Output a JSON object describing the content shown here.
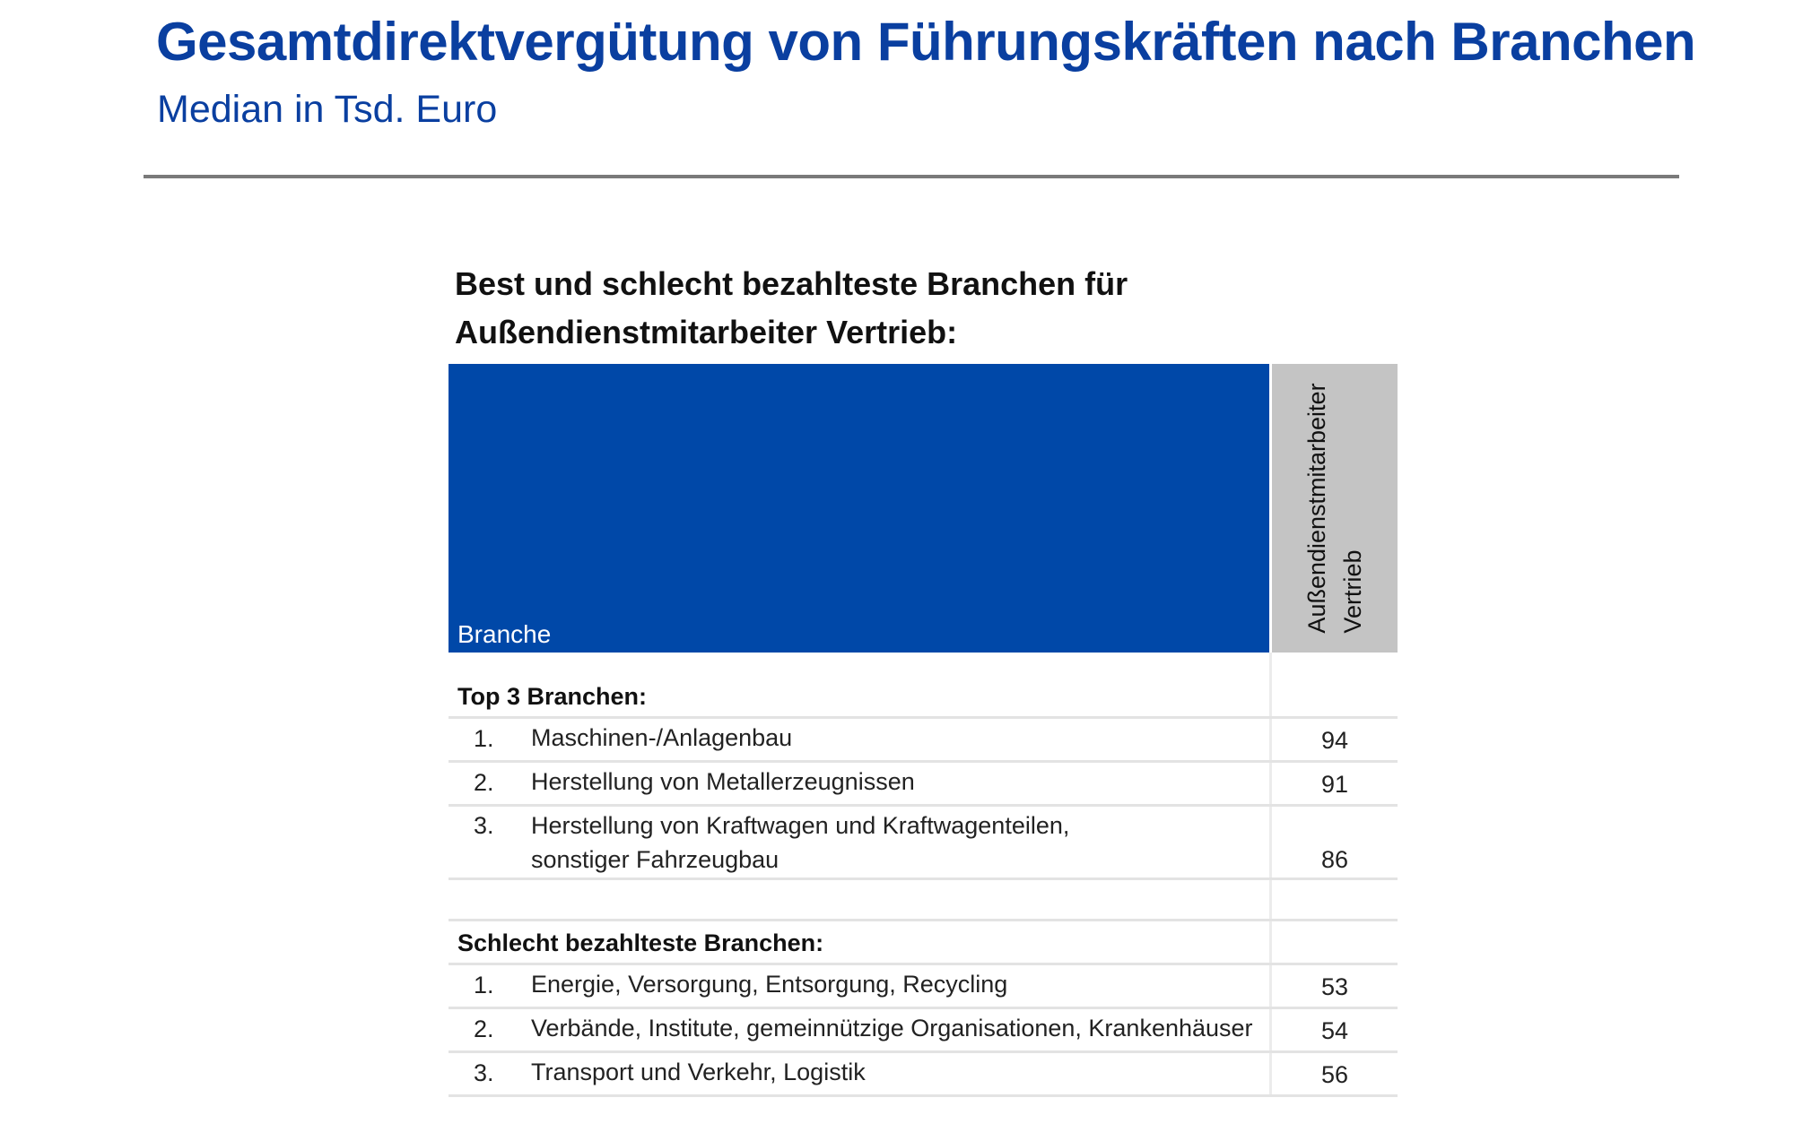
{
  "header": {
    "title": "Gesamtdirektvergütung von Führungskräften nach Branchen",
    "subtitle": "Median in Tsd. Euro"
  },
  "table": {
    "title_line1": "Best und schlecht bezahlteste  Branchen für",
    "title_line2": "Außendienstmitarbeiter  Vertrieb:",
    "column_branche": "Branche",
    "column_value_line1": "Außendienstmitarbeiter",
    "column_value_line2": "Vertrieb",
    "top_section_label": "Top 3 Branchen:",
    "top_rows": [
      {
        "rank": "1.",
        "name": "Maschinen-/Anlagenbau",
        "value": "94"
      },
      {
        "rank": "2.",
        "name": "Herstellung von Metallerzeugnissen",
        "value": "91"
      },
      {
        "rank": "3.",
        "name_line1": "Herstellung von Kraftwagen und Kraftwagenteilen,",
        "name_line2": "sonstiger Fahrzeugbau",
        "value": "86"
      }
    ],
    "bottom_section_label": "Schlecht bezahlteste Branchen:",
    "bottom_rows": [
      {
        "rank": "1.",
        "name": "Energie, Versorgung, Entsorgung, Recycling",
        "value": "53"
      },
      {
        "rank": "2.",
        "name": "Verbände, Institute, gemeinnützige Organisationen, Krankenhäuser",
        "value": "54"
      },
      {
        "rank": "3.",
        "name": "Transport und Verkehr, Logistik",
        "value": "56"
      }
    ]
  },
  "colors": {
    "title": "#0a3fa0",
    "header_blue": "#0048a8",
    "header_gray": "#c4c4c4"
  }
}
